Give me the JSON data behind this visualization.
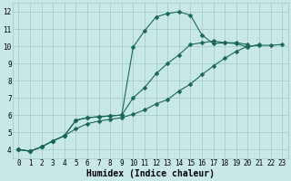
{
  "xlabel": "Humidex (Indice chaleur)",
  "ylabel": "",
  "bg_color": "#c8e8e8",
  "grid_color": "#a8cccc",
  "line_color": "#1a6655",
  "marker_color": "#1a6655",
  "xlim": [
    -0.5,
    23.5
  ],
  "ylim": [
    3.5,
    12.5
  ],
  "xticks": [
    0,
    1,
    2,
    3,
    4,
    5,
    6,
    7,
    8,
    9,
    10,
    11,
    12,
    13,
    14,
    15,
    16,
    17,
    18,
    19,
    20,
    21,
    22,
    23
  ],
  "yticks": [
    4,
    5,
    6,
    7,
    8,
    9,
    10,
    11,
    12
  ],
  "line1_x": [
    0,
    1,
    2,
    3,
    4,
    5,
    6,
    7,
    8,
    9,
    10,
    11,
    12,
    13,
    14,
    15,
    16,
    17,
    18,
    19,
    20,
    21,
    22,
    23
  ],
  "line1_y": [
    4.0,
    3.9,
    4.15,
    4.5,
    4.8,
    5.7,
    5.85,
    5.9,
    5.95,
    6.0,
    9.95,
    10.9,
    11.7,
    11.9,
    12.0,
    11.8,
    10.65,
    10.15,
    10.2,
    10.15,
    9.95,
    10.1,
    null,
    null
  ],
  "line2_x": [
    0,
    1,
    2,
    3,
    4,
    5,
    6,
    7,
    8,
    9,
    10,
    11,
    12,
    13,
    14,
    15,
    16,
    17,
    18,
    19,
    20,
    21,
    22,
    23
  ],
  "line2_y": [
    4.0,
    3.9,
    4.15,
    4.5,
    4.8,
    5.7,
    5.85,
    5.9,
    5.95,
    6.0,
    7.0,
    7.6,
    8.4,
    9.0,
    9.5,
    10.1,
    10.2,
    10.3,
    10.2,
    10.2,
    10.1,
    null,
    null,
    null
  ],
  "line3_x": [
    0,
    1,
    2,
    3,
    4,
    5,
    6,
    7,
    8,
    9,
    10,
    11,
    12,
    13,
    14,
    15,
    16,
    17,
    18,
    19,
    20,
    21,
    22,
    23
  ],
  "line3_y": [
    4.0,
    3.9,
    4.15,
    4.5,
    4.8,
    5.2,
    5.5,
    5.65,
    5.75,
    5.85,
    6.05,
    6.3,
    6.65,
    6.9,
    7.4,
    7.8,
    8.35,
    8.85,
    9.3,
    9.7,
    10.0,
    10.05,
    10.05,
    10.1
  ],
  "font_family": "monospace",
  "tick_fontsize": 5.5,
  "label_fontsize": 7.0
}
